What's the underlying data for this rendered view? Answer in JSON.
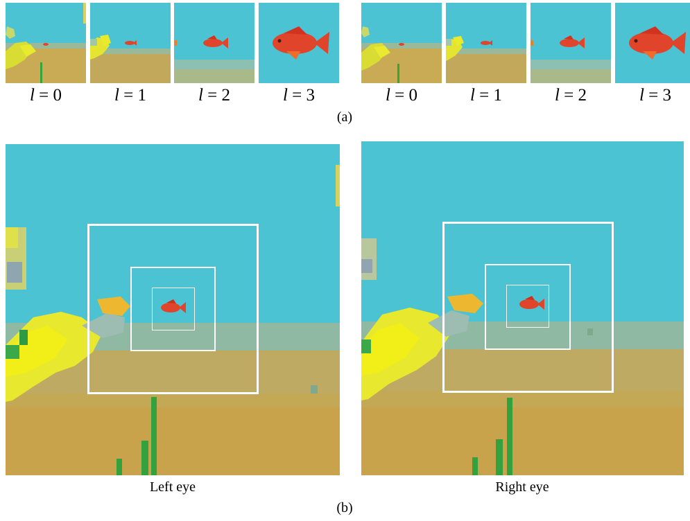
{
  "figure": {
    "panel_a": {
      "label": "(a)",
      "groups": [
        {
          "eye": "left",
          "levels": [
            {
              "var": "l",
              "eq": "=",
              "num": "0"
            },
            {
              "var": "l",
              "eq": "=",
              "num": "1"
            },
            {
              "var": "l",
              "eq": "=",
              "num": "2"
            },
            {
              "var": "l",
              "eq": "=",
              "num": "3"
            }
          ]
        },
        {
          "eye": "right",
          "levels": [
            {
              "var": "l",
              "eq": "=",
              "num": "0"
            },
            {
              "var": "l",
              "eq": "=",
              "num": "1"
            },
            {
              "var": "l",
              "eq": "=",
              "num": "2"
            },
            {
              "var": "l",
              "eq": "=",
              "num": "3"
            }
          ]
        }
      ]
    },
    "panel_b": {
      "label": "(b)",
      "left_caption": "Left eye",
      "right_caption": "Right eye"
    },
    "colors": {
      "water": "#4bc3d3",
      "sand": "#c9ab56",
      "fish": "#e0442a",
      "plant_yellow": "#e9ea2a",
      "plant_green": "#35a43a",
      "frame": "#ffffff"
    },
    "scene_content": [
      "fish",
      "seabed",
      "seaweed",
      "yellow-coral"
    ]
  }
}
